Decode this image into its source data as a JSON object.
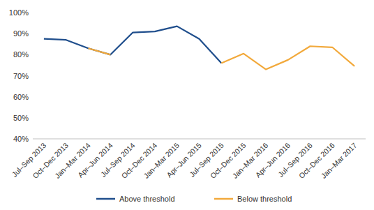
{
  "chart_data": {
    "type": "line",
    "categories": [
      "Jul–Sep 2013",
      "Oct–Dec 2013",
      "Jan–Mar 2014",
      "Apr–Jun 2014",
      "Jul–Sep 2014",
      "Oct–Dec 2014",
      "Jan–Mar 2015",
      "Apr–Jun 2015",
      "Jul–Sep 2015",
      "Oct–Dec 2015",
      "Jan–Mar 2016",
      "Apr–Jun 2016",
      "Jul–Sep 2016",
      "Oct–Dec 2016",
      "Jan–Mar 2017"
    ],
    "series": [
      {
        "name": "Above threshold",
        "color": "#1f4e8c",
        "values": [
          87.5,
          87,
          83,
          80,
          90.5,
          91,
          93.5,
          87.5,
          76,
          null,
          null,
          null,
          null,
          null,
          null
        ]
      },
      {
        "name": "Below threshold",
        "color": "#f2a93b",
        "values": [
          null,
          null,
          83,
          80,
          null,
          null,
          null,
          null,
          76,
          80.5,
          73,
          77.5,
          84,
          83.5,
          74.5
        ]
      }
    ],
    "ylim": [
      40,
      100
    ],
    "yticks": [
      {
        "value": 40,
        "label": "40%"
      },
      {
        "value": 50,
        "label": "50%"
      },
      {
        "value": 60,
        "label": "60%"
      },
      {
        "value": 70,
        "label": "70%"
      },
      {
        "value": 80,
        "label": "80%"
      },
      {
        "value": 90,
        "label": "90%"
      },
      {
        "value": 100,
        "label": "100%"
      }
    ],
    "grid": false,
    "legend": "bottom"
  }
}
